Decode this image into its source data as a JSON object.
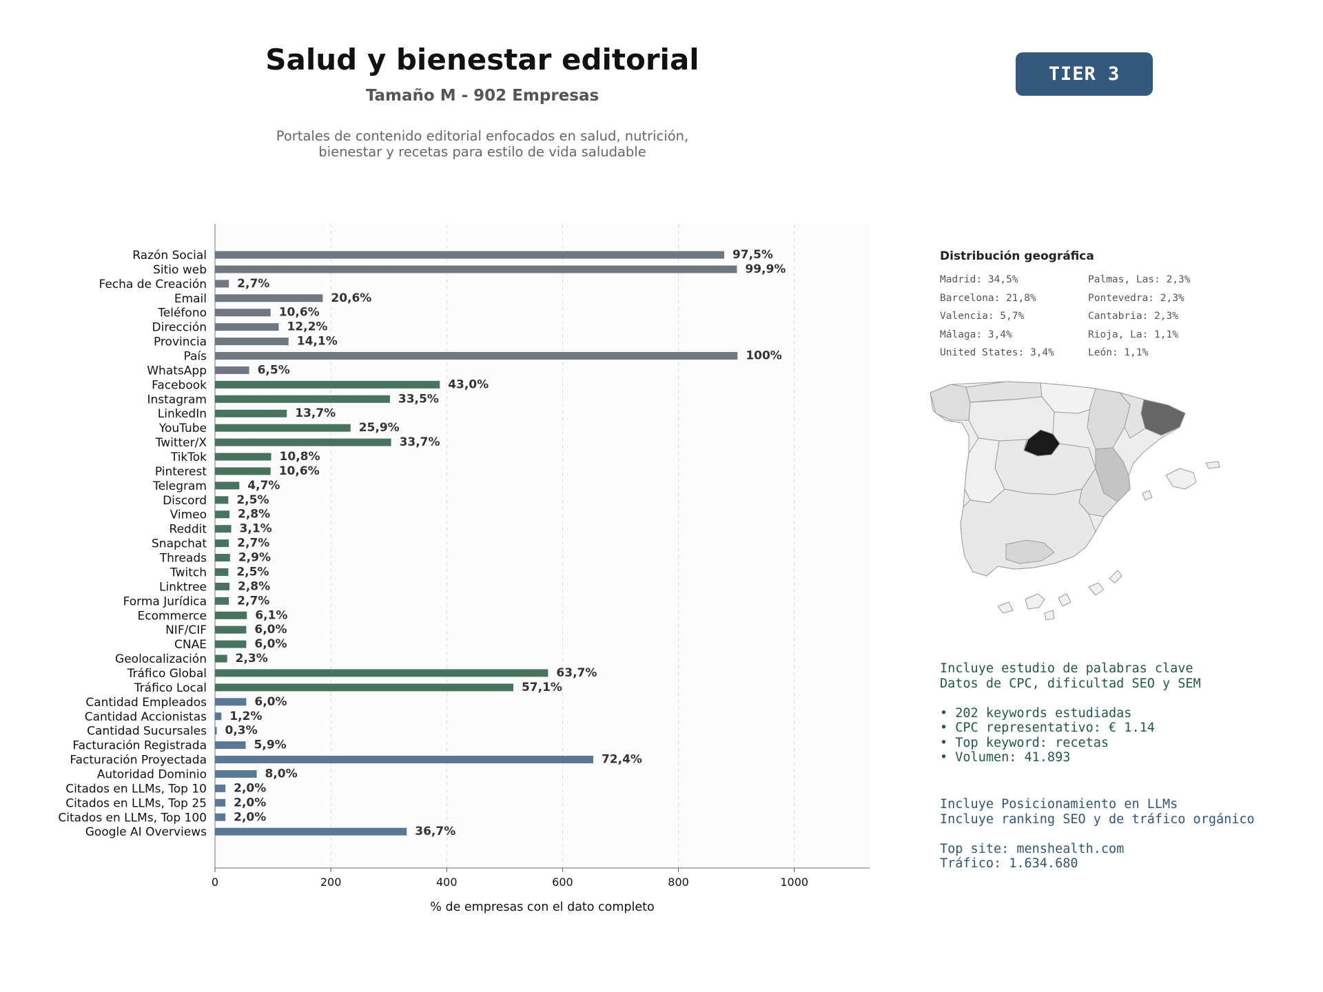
{
  "header": {
    "title": "Salud y bienestar editorial",
    "subtitle": "Tamaño M - 902 Empresas",
    "description_line1": "Portales de contenido editorial enfocados en salud, nutrición,",
    "description_line2": "bienestar y recetas para estilo de vida saludable",
    "tier": "TIER 3"
  },
  "chart_data": {
    "type": "bar",
    "orientation": "horizontal",
    "xlabel": "% de empresas con el dato completo",
    "xlim": [
      0,
      1130
    ],
    "xticks": [
      0,
      200,
      400,
      600,
      800,
      1000
    ],
    "grid": "vertical dashed",
    "categories": [
      "Razón Social",
      "Sitio web",
      "Fecha de Creación",
      "Email",
      "Teléfono",
      "Dirección",
      "Provincia",
      "País",
      "WhatsApp",
      "Facebook",
      "Instagram",
      "LinkedIn",
      "YouTube",
      "Twitter/X",
      "TikTok",
      "Pinterest",
      "Telegram",
      "Discord",
      "Vimeo",
      "Reddit",
      "Snapchat",
      "Threads",
      "Twitch",
      "Linktree",
      "Forma Jurídica",
      "Ecommerce",
      "NIF/CIF",
      "CNAE",
      "Geolocalización",
      "Tráfico Global",
      "Tráfico Local",
      "Cantidad Empleados",
      "Cantidad Accionistas",
      "Cantidad Sucursales",
      "Facturación Registrada",
      "Facturación Proyectada",
      "Autoridad Dominio",
      "Citados en LLMs, Top 10",
      "Citados en LLMs, Top 25",
      "Citados en LLMs, Top 100",
      "Google AI Overviews"
    ],
    "values": [
      879,
      901,
      24,
      186,
      96,
      110,
      127,
      902,
      59,
      388,
      302,
      124,
      234,
      304,
      97,
      96,
      42,
      23,
      25,
      28,
      24,
      26,
      23,
      25,
      24,
      55,
      54,
      54,
      21,
      575,
      515,
      54,
      11,
      3,
      53,
      653,
      72,
      18,
      18,
      18,
      331
    ],
    "labels": [
      "97,5%",
      "99,9%",
      "2,7%",
      "20,6%",
      "10,6%",
      "12,2%",
      "14,1%",
      "100%",
      "6,5%",
      "43,0%",
      "33,5%",
      "13,7%",
      "25,9%",
      "33,7%",
      "10,8%",
      "10,6%",
      "4,7%",
      "2,5%",
      "2,8%",
      "3,1%",
      "2,7%",
      "2,9%",
      "2,5%",
      "2,8%",
      "2,7%",
      "6,1%",
      "6,0%",
      "6,0%",
      "2,3%",
      "63,7%",
      "57,1%",
      "6,0%",
      "1,2%",
      "0,3%",
      "5,9%",
      "72,4%",
      "8,0%",
      "2,0%",
      "2,0%",
      "2,0%",
      "36,7%"
    ],
    "groups": [
      "basic",
      "basic",
      "basic",
      "basic",
      "basic",
      "basic",
      "basic",
      "basic",
      "basic",
      "social",
      "social",
      "social",
      "social",
      "social",
      "social",
      "social",
      "social",
      "social",
      "social",
      "social",
      "social",
      "social",
      "social",
      "social",
      "social",
      "social",
      "social",
      "social",
      "social",
      "social",
      "social",
      "financial",
      "financial",
      "financial",
      "financial",
      "financial",
      "financial",
      "financial",
      "financial",
      "financial",
      "financial"
    ],
    "colors": {
      "basic": "#6f7780",
      "social": "#48735e",
      "financial": "#5a7894"
    }
  },
  "geo": {
    "title": "Distribución geográfica",
    "items": [
      "Madrid: 34,5%",
      "Barcelona: 21,8%",
      "Valencia: 5,7%",
      "Málaga: 3,4%",
      "United States: 3,4%",
      "Palmas, Las: 2,3%",
      "Pontevedra: 2,3%",
      "Cantabria: 2,3%",
      "Rioja, La: 1,1%",
      "León: 1,1%"
    ]
  },
  "keywords": {
    "line1": "Incluye estudio de palabras clave",
    "line2": "Datos de CPC, dificultad SEO y SEM",
    "bullet1": "• 202 keywords estudiadas",
    "bullet2": "• CPC representativo: € 1.14",
    "bullet3": "• Top keyword: recetas",
    "bullet4": "• Volumen: 41.893"
  },
  "llm": {
    "line1": "Incluye Posicionamiento en LLMs",
    "line2": "Incluye ranking SEO y de tráfico orgánico",
    "top_site": "Top site: menshealth.com",
    "traffic": "Tráfico: 1.634.680"
  }
}
